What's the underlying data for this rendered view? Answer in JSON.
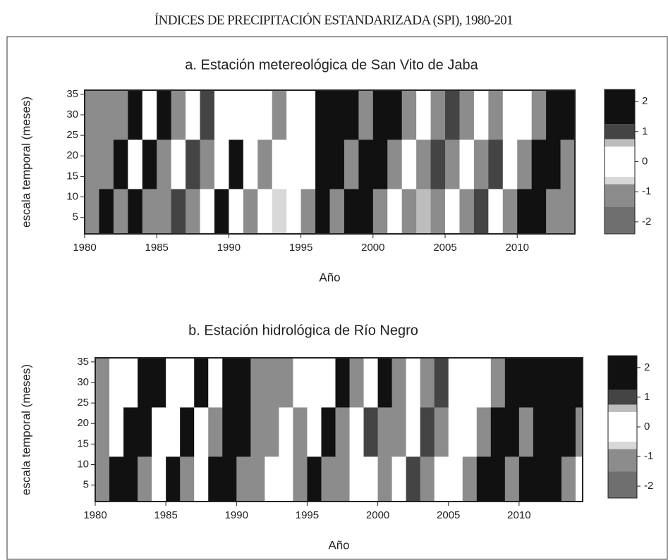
{
  "title": "ÍNDICES DE PRECIPITACIÓN ESTANDARIZADA (SPI), 1980-201",
  "chart_data": [
    {
      "type": "heatmap",
      "title": "a. Estación metereológica de San Vito de Jaba",
      "xlabel": "Año",
      "ylabel": "escala temporal (meses)",
      "x": [
        1980,
        1981,
        1982,
        1983,
        1984,
        1985,
        1986,
        1987,
        1988,
        1989,
        1990,
        1991,
        1992,
        1993,
        1994,
        1995,
        1996,
        1997,
        1998,
        1999,
        2000,
        2001,
        2002,
        2003,
        2004,
        2005,
        2006,
        2007,
        2008,
        2009,
        2010,
        2011,
        2012,
        2013
      ],
      "y_edges": [
        1,
        12,
        24,
        36
      ],
      "z": [
        [
          -1,
          1.5,
          -1,
          1.5,
          -1,
          -1.2,
          0.8,
          -1,
          0,
          1.5,
          0,
          -1,
          0,
          -0.6,
          0,
          -1.2,
          2,
          -1.2,
          1.5,
          1.8,
          -1,
          0,
          -1,
          0.6,
          -1.2,
          0,
          -1,
          0.8,
          0,
          -1.2,
          1.6,
          2,
          -1,
          -1.2
        ],
        [
          -1,
          -1,
          1.5,
          0,
          1.5,
          -1,
          0,
          1,
          -1,
          0,
          1.3,
          0,
          -1,
          0,
          0,
          0,
          2,
          2,
          -1.2,
          1.5,
          1.8,
          -1,
          0,
          -1,
          0.8,
          -1,
          0,
          -1,
          1,
          0,
          -1.2,
          2,
          1.5,
          -1
        ],
        [
          -1,
          -1,
          -1,
          1.5,
          0,
          1.3,
          -1,
          0,
          1,
          0,
          0,
          0,
          0,
          -1,
          0,
          0,
          2,
          2,
          1.5,
          -1,
          1.5,
          2,
          -1,
          0,
          -1,
          0.8,
          -1,
          0,
          -1,
          0,
          0,
          -1.2,
          2,
          1.6
        ]
      ],
      "xlim": [
        1980,
        2014
      ],
      "xticks": [
        1980,
        1985,
        1990,
        1995,
        2000,
        2005,
        2010
      ],
      "ylim": [
        1,
        36
      ],
      "yticks": [
        5,
        10,
        15,
        20,
        25,
        30,
        35
      ],
      "colorbar": {
        "lim": [
          -2.4,
          2.4
        ],
        "ticks": [
          2,
          1,
          0,
          -1,
          -2
        ],
        "breaks": [
          -2.4,
          -1.5,
          -0.75,
          -0.5,
          0.5,
          0.75,
          1.25,
          2.4
        ],
        "colors": [
          "#6f6f6f",
          "#8c8c8c",
          "#d8d8d8",
          "#ffffff",
          "#bdbdbd",
          "#444444",
          "#111111"
        ]
      }
    },
    {
      "type": "heatmap",
      "title": "b. Estación hidrológica de Río Negro",
      "xlabel": "Año",
      "ylabel": "escala temporal (meses)",
      "x": [
        1980,
        1981,
        1982,
        1983,
        1984,
        1985,
        1986,
        1987,
        1988,
        1989,
        1990,
        1991,
        1992,
        1993,
        1994,
        1995,
        1996,
        1997,
        1998,
        1999,
        2000,
        2001,
        2002,
        2003,
        2004,
        2005,
        2006,
        2007,
        2008,
        2009,
        2010,
        2011,
        2012,
        2013,
        2014
      ],
      "y_edges": [
        1,
        12,
        24,
        36
      ],
      "z": [
        [
          -1,
          1.5,
          2,
          -1,
          0,
          1.5,
          -1,
          0,
          2,
          1.6,
          -1,
          -1,
          0,
          0,
          -1,
          1.5,
          -1,
          -1,
          0,
          0,
          -1,
          0,
          0.8,
          -1,
          0,
          0,
          -1,
          1.5,
          1.5,
          -1,
          2,
          2,
          2,
          -1,
          0
        ],
        [
          -1,
          0,
          2,
          1.5,
          0,
          0,
          1.5,
          0,
          -1,
          2,
          1.5,
          -1,
          -1,
          0,
          -1,
          0,
          1.5,
          -1,
          0,
          1,
          -1,
          -1,
          0,
          1,
          -1,
          0,
          0,
          -1,
          1.6,
          1.5,
          -1,
          2,
          2,
          1.5,
          -1
        ],
        [
          -1,
          0,
          0,
          2,
          1.5,
          0,
          0,
          1.5,
          0,
          2,
          1.5,
          -1,
          -1,
          -1,
          0,
          0,
          0,
          1.5,
          -1,
          0,
          1.3,
          -1,
          0,
          -1,
          1,
          0,
          0,
          0,
          -1,
          1.6,
          1.5,
          2,
          2,
          2,
          1.5
        ]
      ],
      "xlim": [
        1980,
        2014.5
      ],
      "xticks": [
        1980,
        1985,
        1990,
        1995,
        2000,
        2005,
        2010
      ],
      "ylim": [
        1,
        36
      ],
      "yticks": [
        5,
        10,
        15,
        20,
        25,
        30,
        35
      ],
      "colorbar": {
        "lim": [
          -2.4,
          2.4
        ],
        "ticks": [
          2,
          1,
          0,
          -1,
          -2
        ],
        "breaks": [
          -2.4,
          -1.5,
          -0.75,
          -0.5,
          0.5,
          0.75,
          1.25,
          2.4
        ],
        "colors": [
          "#6f6f6f",
          "#8c8c8c",
          "#d8d8d8",
          "#ffffff",
          "#bdbdbd",
          "#444444",
          "#111111"
        ]
      }
    }
  ]
}
